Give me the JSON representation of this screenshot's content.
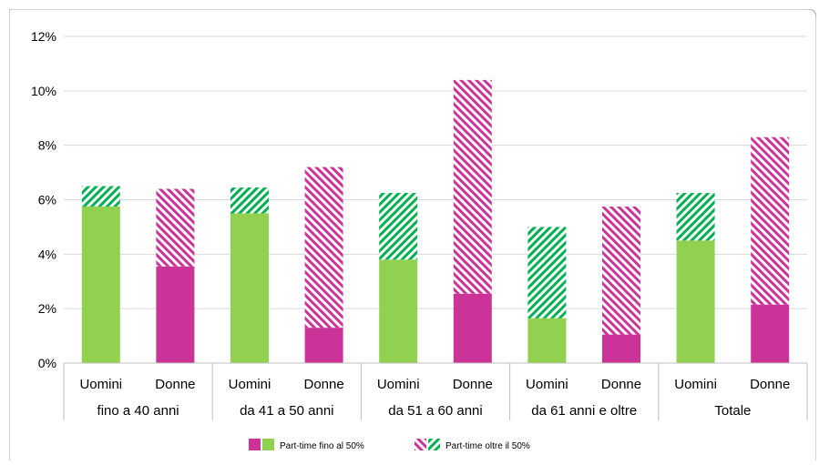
{
  "chart_data": {
    "type": "bar",
    "stacked": true,
    "y_axis": {
      "min": 0,
      "max": 12,
      "step": 2,
      "tick_labels": [
        "0%",
        "2%",
        "4%",
        "6%",
        "8%",
        "10%",
        "12%"
      ]
    },
    "grid": true,
    "groups": [
      "fino a 40 anni",
      "da 41 a 50 anni",
      "da 51 a 60 anni",
      "da 61 anni e oltre",
      "Totale"
    ],
    "categories": [
      {
        "group": "fino a 40 anni",
        "label": "Uomini"
      },
      {
        "group": "fino a 40 anni",
        "label": "Donne"
      },
      {
        "group": "da 41 a 50 anni",
        "label": "Uomini"
      },
      {
        "group": "da 41 a 50 anni",
        "label": "Donne"
      },
      {
        "group": "da 51 a 60 anni",
        "label": "Uomini"
      },
      {
        "group": "da 51 a 60 anni",
        "label": "Donne"
      },
      {
        "group": "da 61 anni e oltre",
        "label": "Uomini"
      },
      {
        "group": "da 61 anni e oltre",
        "label": "Donne"
      },
      {
        "group": "Totale",
        "label": "Uomini"
      },
      {
        "group": "Totale",
        "label": "Donne"
      }
    ],
    "series": [
      {
        "name": "Part-time fino al 50%",
        "values": [
          5.75,
          3.55,
          5.5,
          1.3,
          3.8,
          2.55,
          1.65,
          1.05,
          4.5,
          2.15
        ]
      },
      {
        "name": "Part-time oltre il 50%",
        "values": [
          0.75,
          2.85,
          0.95,
          5.9,
          2.45,
          7.85,
          3.35,
          4.7,
          1.75,
          6.15
        ]
      }
    ],
    "colors": {
      "Uomini": "#92d050",
      "Donne": "#cc3399",
      "gridline": "#d9d9d9",
      "axis": "#bfbfbf",
      "text": "#000000"
    },
    "legend": {
      "placement": "bottom",
      "entries": [
        "Part-time fino al 50%",
        "Part-time oltre il 50%"
      ]
    }
  }
}
